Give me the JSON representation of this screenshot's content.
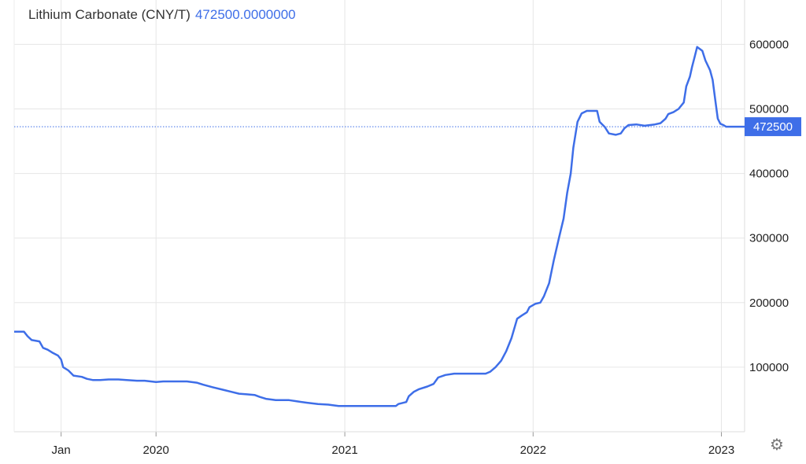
{
  "header": {
    "title": "Lithium Carbonate (CNY/T)",
    "last_value": "472500.0000000"
  },
  "colors": {
    "line": "#3e6ee8",
    "grid": "#e6e6e6",
    "badge": "#3e6ee8"
  },
  "settings": {
    "icon": "gear-icon"
  },
  "chart_data": {
    "type": "line",
    "title": "Lithium Carbonate (CNY/T)",
    "xlabel": "",
    "ylabel": "",
    "grid": true,
    "legend": "none",
    "ylim": [
      0,
      620000
    ],
    "xlim": [
      "2019-04-01",
      "2023-02-15"
    ],
    "y_ticks": [
      100000,
      200000,
      300000,
      400000,
      500000,
      600000
    ],
    "y_tick_labels": [
      "100000",
      "200000",
      "300000",
      "400000",
      "500000",
      "600000"
    ],
    "x_ticks": [
      {
        "date": "2019-07-01",
        "label": "Jan"
      },
      {
        "date": "2020-01-01",
        "label": "2020"
      },
      {
        "date": "2021-01-01",
        "label": "2021"
      },
      {
        "date": "2022-01-01",
        "label": "2022"
      },
      {
        "date": "2023-01-01",
        "label": "2023"
      }
    ],
    "last_value": 472500,
    "last_value_label": "472500",
    "series": [
      {
        "points": [
          [
            "2019-04-01",
            155000
          ],
          [
            "2019-04-20",
            155000
          ],
          [
            "2019-04-27",
            148000
          ],
          [
            "2019-05-05",
            142000
          ],
          [
            "2019-05-20",
            140000
          ],
          [
            "2019-05-27",
            130000
          ],
          [
            "2019-06-05",
            127000
          ],
          [
            "2019-06-15",
            122000
          ],
          [
            "2019-06-25",
            118000
          ],
          [
            "2019-07-01",
            112000
          ],
          [
            "2019-07-05",
            100000
          ],
          [
            "2019-07-15",
            95000
          ],
          [
            "2019-07-25",
            87000
          ],
          [
            "2019-08-10",
            85000
          ],
          [
            "2019-08-20",
            82000
          ],
          [
            "2019-09-01",
            80000
          ],
          [
            "2019-09-15",
            80000
          ],
          [
            "2019-10-01",
            81000
          ],
          [
            "2019-10-20",
            81000
          ],
          [
            "2019-11-05",
            80000
          ],
          [
            "2019-11-25",
            79000
          ],
          [
            "2019-12-10",
            79000
          ],
          [
            "2020-01-01",
            77000
          ],
          [
            "2020-01-15",
            78000
          ],
          [
            "2020-02-15",
            78000
          ],
          [
            "2020-03-01",
            78000
          ],
          [
            "2020-03-20",
            76000
          ],
          [
            "2020-04-01",
            73000
          ],
          [
            "2020-04-20",
            69000
          ],
          [
            "2020-05-10",
            65000
          ],
          [
            "2020-05-25",
            62000
          ],
          [
            "2020-06-10",
            59000
          ],
          [
            "2020-06-25",
            58000
          ],
          [
            "2020-07-10",
            57000
          ],
          [
            "2020-07-20",
            54000
          ],
          [
            "2020-08-01",
            51000
          ],
          [
            "2020-08-20",
            49000
          ],
          [
            "2020-09-15",
            49000
          ],
          [
            "2020-10-01",
            47000
          ],
          [
            "2020-10-20",
            45000
          ],
          [
            "2020-11-10",
            43000
          ],
          [
            "2020-11-30",
            42000
          ],
          [
            "2020-12-20",
            40000
          ],
          [
            "2021-01-31",
            40000
          ],
          [
            "2021-03-15",
            40000
          ],
          [
            "2021-04-10",
            40000
          ],
          [
            "2021-04-15",
            43000
          ],
          [
            "2021-04-30",
            46000
          ],
          [
            "2021-05-05",
            55000
          ],
          [
            "2021-05-15",
            62000
          ],
          [
            "2021-05-25",
            66000
          ],
          [
            "2021-06-10",
            70000
          ],
          [
            "2021-06-22",
            74000
          ],
          [
            "2021-07-01",
            84000
          ],
          [
            "2021-07-15",
            88000
          ],
          [
            "2021-08-01",
            90000
          ],
          [
            "2021-08-15",
            90000
          ],
          [
            "2021-09-15",
            90000
          ],
          [
            "2021-10-01",
            90000
          ],
          [
            "2021-10-10",
            93000
          ],
          [
            "2021-10-20",
            100000
          ],
          [
            "2021-10-31",
            110000
          ],
          [
            "2021-11-10",
            125000
          ],
          [
            "2021-11-20",
            145000
          ],
          [
            "2021-12-01",
            175000
          ],
          [
            "2021-12-10",
            180000
          ],
          [
            "2021-12-20",
            185000
          ],
          [
            "2021-12-25",
            193000
          ],
          [
            "2022-01-05",
            198000
          ],
          [
            "2022-01-15",
            200000
          ],
          [
            "2022-01-22",
            210000
          ],
          [
            "2022-02-01",
            230000
          ],
          [
            "2022-02-10",
            265000
          ],
          [
            "2022-02-20",
            300000
          ],
          [
            "2022-03-01",
            330000
          ],
          [
            "2022-03-08",
            370000
          ],
          [
            "2022-03-15",
            400000
          ],
          [
            "2022-03-20",
            440000
          ],
          [
            "2022-03-28",
            480000
          ],
          [
            "2022-04-05",
            493000
          ],
          [
            "2022-04-15",
            497000
          ],
          [
            "2022-05-05",
            497000
          ],
          [
            "2022-05-10",
            480000
          ],
          [
            "2022-05-20",
            472000
          ],
          [
            "2022-05-28",
            462000
          ],
          [
            "2022-06-10",
            460000
          ],
          [
            "2022-06-20",
            462000
          ],
          [
            "2022-06-27",
            470000
          ],
          [
            "2022-07-05",
            475000
          ],
          [
            "2022-07-20",
            476000
          ],
          [
            "2022-08-05",
            474000
          ],
          [
            "2022-08-25",
            476000
          ],
          [
            "2022-09-05",
            478000
          ],
          [
            "2022-09-15",
            485000
          ],
          [
            "2022-09-20",
            492000
          ],
          [
            "2022-09-30",
            495000
          ],
          [
            "2022-10-10",
            500000
          ],
          [
            "2022-10-20",
            510000
          ],
          [
            "2022-10-25",
            535000
          ],
          [
            "2022-11-01",
            550000
          ],
          [
            "2022-11-05",
            565000
          ],
          [
            "2022-11-10",
            580000
          ],
          [
            "2022-11-15",
            596000
          ],
          [
            "2022-11-25",
            590000
          ],
          [
            "2022-12-01",
            575000
          ],
          [
            "2022-12-10",
            560000
          ],
          [
            "2022-12-15",
            545000
          ],
          [
            "2022-12-20",
            515000
          ],
          [
            "2022-12-25",
            485000
          ],
          [
            "2022-12-30",
            477000
          ],
          [
            "2023-01-05",
            475000
          ],
          [
            "2023-01-10",
            472500
          ],
          [
            "2023-02-15",
            472500
          ]
        ]
      }
    ]
  }
}
